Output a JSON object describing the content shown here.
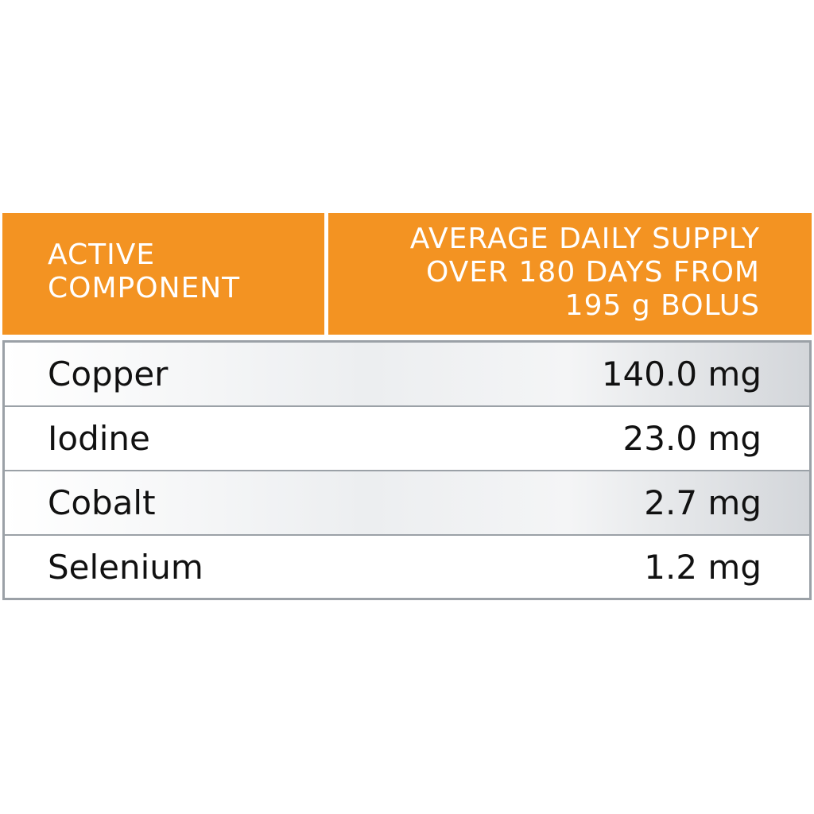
{
  "header": {
    "col1": [
      "ACTIVE",
      "COMPONENT"
    ],
    "col2": [
      "AVERAGE DAILY SUPPLY",
      "OVER 180 DAYS FROM",
      "195 g BOLUS"
    ]
  },
  "rows": [
    {
      "component": "Copper",
      "value": "140.0 mg"
    },
    {
      "component": "Iodine",
      "value": "23.0 mg"
    },
    {
      "component": "Cobalt",
      "value": "2.7 mg"
    },
    {
      "component": "Selenium",
      "value": "1.2 mg"
    }
  ],
  "colors": {
    "header": "#F39322",
    "border": "#9BA1A7"
  }
}
